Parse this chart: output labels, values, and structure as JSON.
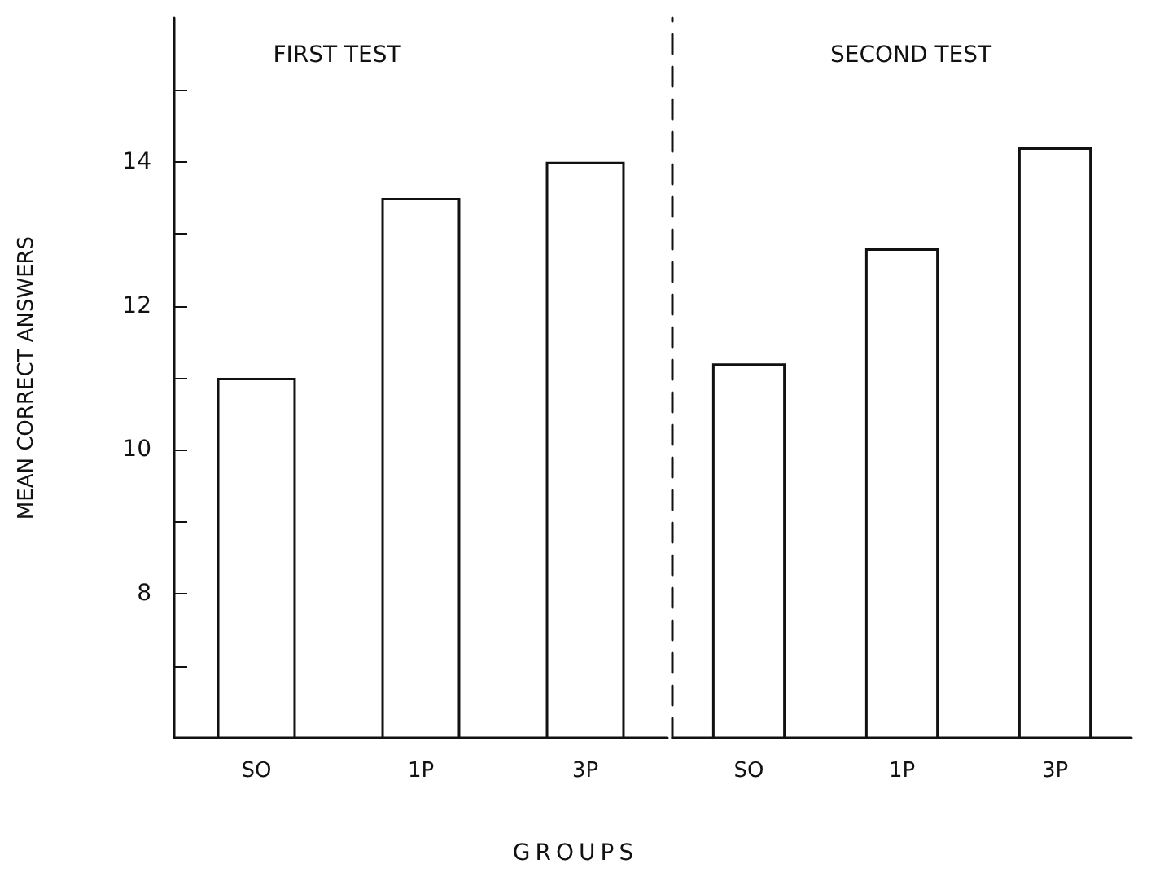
{
  "chart_data": [
    {
      "type": "bar",
      "title": "FIRST TEST",
      "xlabel": "GROUPS",
      "ylabel": "MEAN CORRECT ANSWERS",
      "categories": [
        "SO",
        "1P",
        "3P"
      ],
      "series": [
        {
          "color": "#ffffff",
          "values": [
            11.0,
            13.5,
            14.0
          ]
        }
      ],
      "ylim": [
        6,
        16
      ],
      "yticks": [
        {
          "value": 7,
          "label": null
        },
        8,
        {
          "value": 9,
          "label": null
        },
        10,
        {
          "value": 11,
          "label": null
        },
        12,
        {
          "value": 13,
          "label": null
        },
        14,
        {
          "value": 15,
          "label": null
        }
      ],
      "grid": false
    },
    {
      "type": "bar",
      "title": "SECOND TEST",
      "categories": [
        "SO",
        "1P",
        "3P"
      ],
      "series": [
        {
          "color": "#ffffff",
          "values": [
            11.2,
            12.8,
            14.2
          ]
        }
      ],
      "ylim": [
        6,
        16
      ],
      "tick_labels": "x",
      "grid": false
    }
  ]
}
